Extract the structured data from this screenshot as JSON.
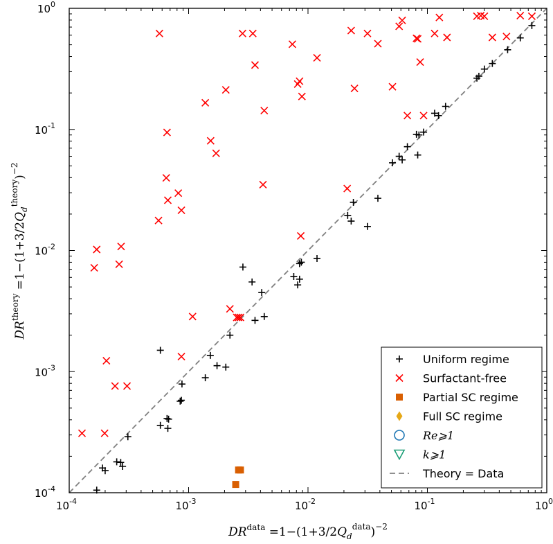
{
  "chart_data": {
    "type": "scatter",
    "xscale": "log",
    "yscale": "log",
    "xlim": [
      0.0001,
      1
    ],
    "ylim": [
      0.0001,
      1
    ],
    "xlabel": "DR^data = 1−(1+3/2Q_d^data)^−2",
    "ylabel": "DR^theory = 1−(1+3/2Q_d^theory)^−2",
    "xticks": [
      "10^-4",
      "10^-3",
      "10^-2",
      "10^-1",
      "10^0"
    ],
    "yticks": [
      "10^-4",
      "10^-3",
      "10^-2",
      "10^-1",
      "10^0"
    ],
    "legend_position": "bottom-right",
    "series": [
      {
        "name": "Uniform regime",
        "marker": "plus",
        "color": "#000000",
        "points": [
          [
            0.00017,
            0.000105
          ],
          [
            0.00019,
            0.00016
          ],
          [
            0.0002,
            0.000152
          ],
          [
            0.00025,
            0.00018
          ],
          [
            0.00027,
            0.000178
          ],
          [
            0.00028,
            0.000165
          ],
          [
            0.00031,
            0.00029
          ],
          [
            0.00058,
            0.00036
          ],
          [
            0.00066,
            0.00041
          ],
          [
            0.00067,
            0.00034
          ],
          [
            0.00068,
            0.000405
          ],
          [
            0.00085,
            0.00057
          ],
          [
            0.00087,
            0.00058
          ],
          [
            0.00088,
            0.00079
          ],
          [
            0.00058,
            0.0015
          ],
          [
            0.00138,
            0.00089
          ],
          [
            0.00152,
            0.00136
          ],
          [
            0.00173,
            0.00112
          ],
          [
            0.00205,
            0.00109
          ],
          [
            0.00222,
            0.002
          ],
          [
            0.00285,
            0.0073
          ],
          [
            0.0034,
            0.0055
          ],
          [
            0.0036,
            0.00265
          ],
          [
            0.0041,
            0.0045
          ],
          [
            0.0043,
            0.00285
          ],
          [
            0.0076,
            0.0061
          ],
          [
            0.0082,
            0.0052
          ],
          [
            0.0085,
            0.0058
          ],
          [
            0.0085,
            0.0078
          ],
          [
            0.0088,
            0.008
          ],
          [
            0.0119,
            0.0086
          ],
          [
            0.0215,
            0.0195
          ],
          [
            0.023,
            0.0175
          ],
          [
            0.024,
            0.025
          ],
          [
            0.0315,
            0.0158
          ],
          [
            0.0385,
            0.027
          ],
          [
            0.051,
            0.053
          ],
          [
            0.058,
            0.06
          ],
          [
            0.0615,
            0.056
          ],
          [
            0.068,
            0.072
          ],
          [
            0.081,
            0.091
          ],
          [
            0.083,
            0.0615
          ],
          [
            0.085,
            0.09
          ],
          [
            0.093,
            0.095
          ],
          [
            0.115,
            0.136
          ],
          [
            0.124,
            0.13
          ],
          [
            0.142,
            0.155
          ],
          [
            0.26,
            0.265
          ],
          [
            0.27,
            0.275
          ],
          [
            0.3,
            0.315
          ],
          [
            0.35,
            0.35
          ],
          [
            0.47,
            0.455
          ],
          [
            0.6,
            0.57
          ],
          [
            0.75,
            0.72
          ]
        ]
      },
      {
        "name": "Surfactant-free",
        "marker": "x",
        "color": "#ff0000",
        "points": [
          [
            0.000128,
            0.00031
          ],
          [
            0.000162,
            0.0072
          ],
          [
            0.00017,
            0.0102
          ],
          [
            0.000198,
            0.00031
          ],
          [
            0.000205,
            0.00123
          ],
          [
            0.000242,
            0.00076
          ],
          [
            0.000262,
            0.0077
          ],
          [
            0.000272,
            0.0108
          ],
          [
            0.000305,
            0.00076
          ],
          [
            0.00056,
            0.0177
          ],
          [
            0.00057,
            0.62
          ],
          [
            0.00065,
            0.0398
          ],
          [
            0.00066,
            0.0945
          ],
          [
            0.00067,
            0.026
          ],
          [
            0.00082,
            0.0298
          ],
          [
            0.00087,
            0.0215
          ],
          [
            0.00087,
            0.00133
          ],
          [
            0.00108,
            0.00285
          ],
          [
            0.00138,
            0.166
          ],
          [
            0.00153,
            0.0805
          ],
          [
            0.0017,
            0.0635
          ],
          [
            0.00205,
            0.212
          ],
          [
            0.00222,
            0.0033
          ],
          [
            0.00253,
            0.0028
          ],
          [
            0.00262,
            0.0028
          ],
          [
            0.00272,
            0.0028
          ],
          [
            0.00283,
            0.62
          ],
          [
            0.00345,
            0.62
          ],
          [
            0.0036,
            0.34
          ],
          [
            0.0042,
            0.035
          ],
          [
            0.0043,
            0.143
          ],
          [
            0.0074,
            0.505
          ],
          [
            0.0082,
            0.237
          ],
          [
            0.0085,
            0.25
          ],
          [
            0.0087,
            0.0132
          ],
          [
            0.0089,
            0.187
          ],
          [
            0.0119,
            0.39
          ],
          [
            0.0213,
            0.0325
          ],
          [
            0.023,
            0.655
          ],
          [
            0.0245,
            0.218
          ],
          [
            0.0315,
            0.62
          ],
          [
            0.0385,
            0.51
          ],
          [
            0.051,
            0.225
          ],
          [
            0.058,
            0.71
          ],
          [
            0.0615,
            0.795
          ],
          [
            0.068,
            0.13
          ],
          [
            0.081,
            0.565
          ],
          [
            0.083,
            0.56
          ],
          [
            0.087,
            0.36
          ],
          [
            0.093,
            0.13
          ],
          [
            0.115,
            0.62
          ],
          [
            0.126,
            0.84
          ],
          [
            0.146,
            0.575
          ],
          [
            0.26,
            0.86
          ],
          [
            0.28,
            0.87
          ],
          [
            0.3,
            0.86
          ],
          [
            0.35,
            0.575
          ],
          [
            0.46,
            0.585
          ],
          [
            0.6,
            0.87
          ],
          [
            0.75,
            0.86
          ]
        ]
      },
      {
        "name": "Partial SC regime",
        "marker": "square",
        "color": "#d95f02",
        "points": [
          [
            0.00248,
            0.000117
          ],
          [
            0.00262,
            0.000154
          ],
          [
            0.00272,
            0.000154
          ]
        ]
      },
      {
        "name": "Full SC regime",
        "marker": "diamond",
        "color": "#e6a817",
        "points": []
      },
      {
        "name": "Re⩾1",
        "marker": "circle",
        "color": "#1f77b4",
        "points": []
      },
      {
        "name": "k⩾1",
        "marker": "triangle-down",
        "color": "#1b9e77",
        "points": []
      }
    ],
    "reference_line": {
      "name": "Theory = Data",
      "style": "dashed",
      "color": "#808080",
      "from": [
        0.0001,
        0.0001
      ],
      "to": [
        1,
        1
      ]
    }
  }
}
